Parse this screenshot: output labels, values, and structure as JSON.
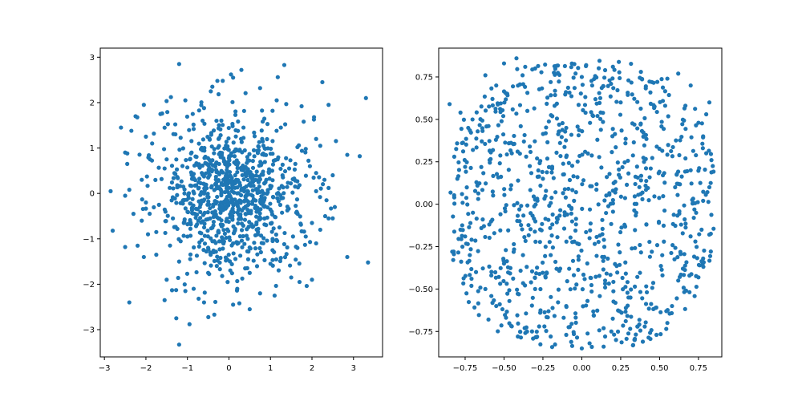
{
  "chart_data": [
    {
      "type": "scatter",
      "title": "",
      "xlabel": "",
      "ylabel": "",
      "xlim": [
        -3.1,
        3.7
      ],
      "ylim": [
        -3.6,
        3.2
      ],
      "xticks": [
        -3,
        -2,
        -1,
        0,
        1,
        2,
        3
      ],
      "xtick_labels": [
        "−3",
        "−2",
        "−1",
        "0",
        "1",
        "2",
        "3"
      ],
      "yticks": [
        -3,
        -2,
        -1,
        0,
        1,
        2,
        3
      ],
      "ytick_labels": [
        "−3",
        "−2",
        "−1",
        "0",
        "1",
        "2",
        "3"
      ],
      "grid": false,
      "legend": "none",
      "marker_color": "#1f77b4",
      "distribution": "bivariate normal, mean 0, sd 1",
      "point_count": 1000,
      "points": [
        [
          -1.2,
          2.85
        ],
        [
          0.3,
          2.72
        ],
        [
          0.05,
          2.62
        ],
        [
          0.1,
          2.55
        ],
        [
          -0.15,
          2.48
        ],
        [
          2.25,
          2.45
        ],
        [
          -0.4,
          2.35
        ],
        [
          0.75,
          2.32
        ],
        [
          3.3,
          2.1
        ],
        [
          -1.05,
          2.05
        ],
        [
          1.15,
          2.05
        ],
        [
          -2.05,
          1.95
        ],
        [
          2.4,
          1.95
        ],
        [
          1.75,
          1.92
        ],
        [
          -0.6,
          1.88
        ],
        [
          -1.65,
          1.75
        ],
        [
          -2.25,
          1.7
        ],
        [
          1.05,
          1.82
        ],
        [
          2.05,
          1.68
        ],
        [
          -2.6,
          1.45
        ],
        [
          -2.35,
          1.38
        ],
        [
          1.8,
          1.58
        ],
        [
          -0.85,
          1.42
        ],
        [
          1.25,
          1.45
        ],
        [
          -2.0,
          1.25
        ],
        [
          2.1,
          1.2
        ],
        [
          -1.85,
          1.1
        ],
        [
          1.65,
          1.02
        ],
        [
          1.85,
          0.98
        ],
        [
          2.2,
          1.05
        ],
        [
          -2.5,
          0.9
        ],
        [
          2.85,
          0.85
        ],
        [
          3.15,
          0.82
        ],
        [
          -1.9,
          0.75
        ],
        [
          1.95,
          0.6
        ],
        [
          -2.45,
          0.65
        ],
        [
          2.1,
          0.45
        ],
        [
          -1.55,
          0.55
        ],
        [
          2.5,
          0.4
        ],
        [
          -2.1,
          0.3
        ],
        [
          2.3,
          0.3
        ],
        [
          -2.85,
          0.05
        ],
        [
          -2.4,
          0.08
        ],
        [
          2.4,
          0.12
        ],
        [
          2.1,
          0.05
        ],
        [
          -2.5,
          -0.05
        ],
        [
          -2.0,
          -0.2
        ],
        [
          2.35,
          -0.15
        ],
        [
          -2.3,
          -0.45
        ],
        [
          2.55,
          -0.3
        ],
        [
          -2.1,
          -0.6
        ],
        [
          2.4,
          -0.55
        ],
        [
          2.0,
          -0.65
        ],
        [
          -1.75,
          -0.85
        ],
        [
          2.2,
          -0.8
        ],
        [
          -2.8,
          -0.82
        ],
        [
          -1.95,
          -0.9
        ],
        [
          1.85,
          -0.95
        ],
        [
          -2.2,
          -1.15
        ],
        [
          2.1,
          -1.1
        ],
        [
          -2.5,
          -1.18
        ],
        [
          1.65,
          -1.2
        ],
        [
          -1.75,
          -1.35
        ],
        [
          1.25,
          -1.42
        ],
        [
          -2.05,
          -1.4
        ],
        [
          2.85,
          -1.4
        ],
        [
          3.35,
          -1.52
        ],
        [
          -1.2,
          -1.5
        ],
        [
          1.0,
          -1.55
        ],
        [
          -1.5,
          -1.9
        ],
        [
          1.5,
          -1.85
        ],
        [
          0.5,
          -1.75
        ],
        [
          -0.5,
          -1.75
        ],
        [
          2.0,
          -1.9
        ],
        [
          -0.85,
          -2.1
        ],
        [
          1.7,
          -1.95
        ],
        [
          -1.05,
          -2.15
        ],
        [
          0.2,
          -2.1
        ],
        [
          -1.55,
          -2.35
        ],
        [
          0.75,
          -2.2
        ],
        [
          1.1,
          -2.25
        ],
        [
          -2.4,
          -2.4
        ],
        [
          -0.6,
          -2.4
        ],
        [
          0.1,
          -2.45
        ],
        [
          0.25,
          -2.42
        ],
        [
          0.5,
          -2.55
        ],
        [
          -0.95,
          -2.88
        ],
        [
          -1.2,
          -3.33
        ],
        [
          0.8,
          1.2
        ],
        [
          -0.3,
          1.6
        ],
        [
          0.35,
          1.45
        ],
        [
          -0.9,
          0.9
        ],
        [
          0.6,
          0.95
        ],
        [
          -0.2,
          0.8
        ],
        [
          0.15,
          0.4
        ],
        [
          -0.5,
          0.35
        ],
        [
          0.9,
          0.3
        ],
        [
          -1.1,
          0.15
        ],
        [
          1.3,
          -0.1
        ],
        [
          -0.7,
          -0.3
        ],
        [
          0.4,
          -0.45
        ],
        [
          -0.15,
          -0.7
        ],
        [
          0.7,
          -0.85
        ],
        [
          -1.0,
          -0.95
        ],
        [
          0.1,
          -1.1
        ],
        [
          -0.45,
          -1.3
        ],
        [
          1.05,
          -1.25
        ],
        [
          -1.35,
          -0.55
        ],
        [
          1.45,
          0.55
        ],
        [
          -1.5,
          0.75
        ]
      ]
    },
    {
      "type": "scatter",
      "title": "",
      "xlabel": "",
      "ylabel": "",
      "xlim": [
        -0.92,
        0.9
      ],
      "ylim": [
        -0.9,
        0.92
      ],
      "xticks": [
        -0.75,
        -0.5,
        -0.25,
        0.0,
        0.25,
        0.5,
        0.75
      ],
      "xtick_labels": [
        "−0.75",
        "−0.50",
        "−0.25",
        "0.00",
        "0.25",
        "0.50",
        "0.75"
      ],
      "yticks": [
        -0.75,
        -0.5,
        -0.25,
        0.0,
        0.25,
        0.5,
        0.75
      ],
      "ytick_labels": [
        "−0.75",
        "−0.50",
        "−0.25",
        "0.00",
        "0.25",
        "0.50",
        "0.75"
      ],
      "grid": false,
      "legend": "none",
      "marker_color": "#1f77b4",
      "distribution": "points filling a rounded region of radius about 0.85",
      "point_count": 1000,
      "points": [
        [
          -0.42,
          0.86
        ],
        [
          -0.5,
          0.83
        ],
        [
          0.2,
          0.81
        ],
        [
          -0.3,
          0.8
        ],
        [
          0.15,
          0.79
        ],
        [
          0.38,
          0.78
        ],
        [
          0.62,
          0.77
        ],
        [
          -0.62,
          0.76
        ],
        [
          0.0,
          0.75
        ],
        [
          0.55,
          0.74
        ],
        [
          -0.2,
          0.72
        ],
        [
          0.3,
          0.73
        ],
        [
          0.45,
          0.72
        ],
        [
          -0.55,
          0.7
        ],
        [
          0.7,
          0.7
        ],
        [
          -0.85,
          0.59
        ],
        [
          -0.78,
          0.54
        ],
        [
          0.82,
          0.6
        ],
        [
          0.8,
          0.53
        ],
        [
          -0.73,
          0.45
        ],
        [
          0.75,
          0.48
        ],
        [
          -0.77,
          0.36
        ],
        [
          0.78,
          0.4
        ],
        [
          -0.7,
          0.32
        ],
        [
          -0.82,
          0.28
        ],
        [
          0.8,
          0.3
        ],
        [
          -0.75,
          0.22
        ],
        [
          0.7,
          0.2
        ],
        [
          -0.8,
          0.15
        ],
        [
          0.82,
          0.1
        ],
        [
          -0.82,
          0.04
        ],
        [
          -0.77,
          0.06
        ],
        [
          0.78,
          0.02
        ],
        [
          -0.7,
          -0.05
        ],
        [
          0.72,
          -0.08
        ],
        [
          -0.78,
          -0.15
        ],
        [
          0.77,
          -0.15
        ],
        [
          -0.75,
          -0.19
        ],
        [
          0.73,
          -0.22
        ],
        [
          -0.72,
          -0.3
        ],
        [
          0.78,
          -0.32
        ],
        [
          -0.68,
          -0.4
        ],
        [
          0.65,
          -0.38
        ],
        [
          -0.62,
          -0.5
        ],
        [
          0.62,
          -0.45
        ],
        [
          -0.55,
          -0.6
        ],
        [
          0.58,
          -0.6
        ],
        [
          -0.6,
          -0.68
        ],
        [
          0.55,
          -0.7
        ],
        [
          -0.45,
          -0.72
        ],
        [
          0.48,
          -0.77
        ],
        [
          -0.32,
          -0.75
        ],
        [
          0.34,
          -0.8
        ],
        [
          -0.2,
          -0.78
        ],
        [
          0.22,
          -0.8
        ],
        [
          -0.1,
          -0.77
        ],
        [
          0.05,
          -0.82
        ],
        [
          0.0,
          -0.85
        ],
        [
          0.33,
          -0.83
        ],
        [
          0.15,
          -0.78
        ],
        [
          -0.35,
          0.55
        ],
        [
          0.25,
          0.6
        ],
        [
          -0.1,
          0.45
        ],
        [
          0.1,
          0.38
        ],
        [
          -0.45,
          0.3
        ],
        [
          0.4,
          0.25
        ],
        [
          -0.25,
          0.15
        ],
        [
          0.2,
          0.08
        ],
        [
          -0.05,
          0.02
        ],
        [
          0.35,
          -0.05
        ],
        [
          -0.4,
          -0.1
        ],
        [
          0.05,
          -0.2
        ],
        [
          -0.2,
          -0.3
        ],
        [
          0.45,
          -0.28
        ],
        [
          -0.5,
          -0.35
        ],
        [
          0.15,
          -0.45
        ],
        [
          -0.3,
          -0.5
        ],
        [
          0.3,
          -0.55
        ],
        [
          -0.1,
          -0.6
        ],
        [
          0.6,
          0.1
        ]
      ]
    }
  ]
}
